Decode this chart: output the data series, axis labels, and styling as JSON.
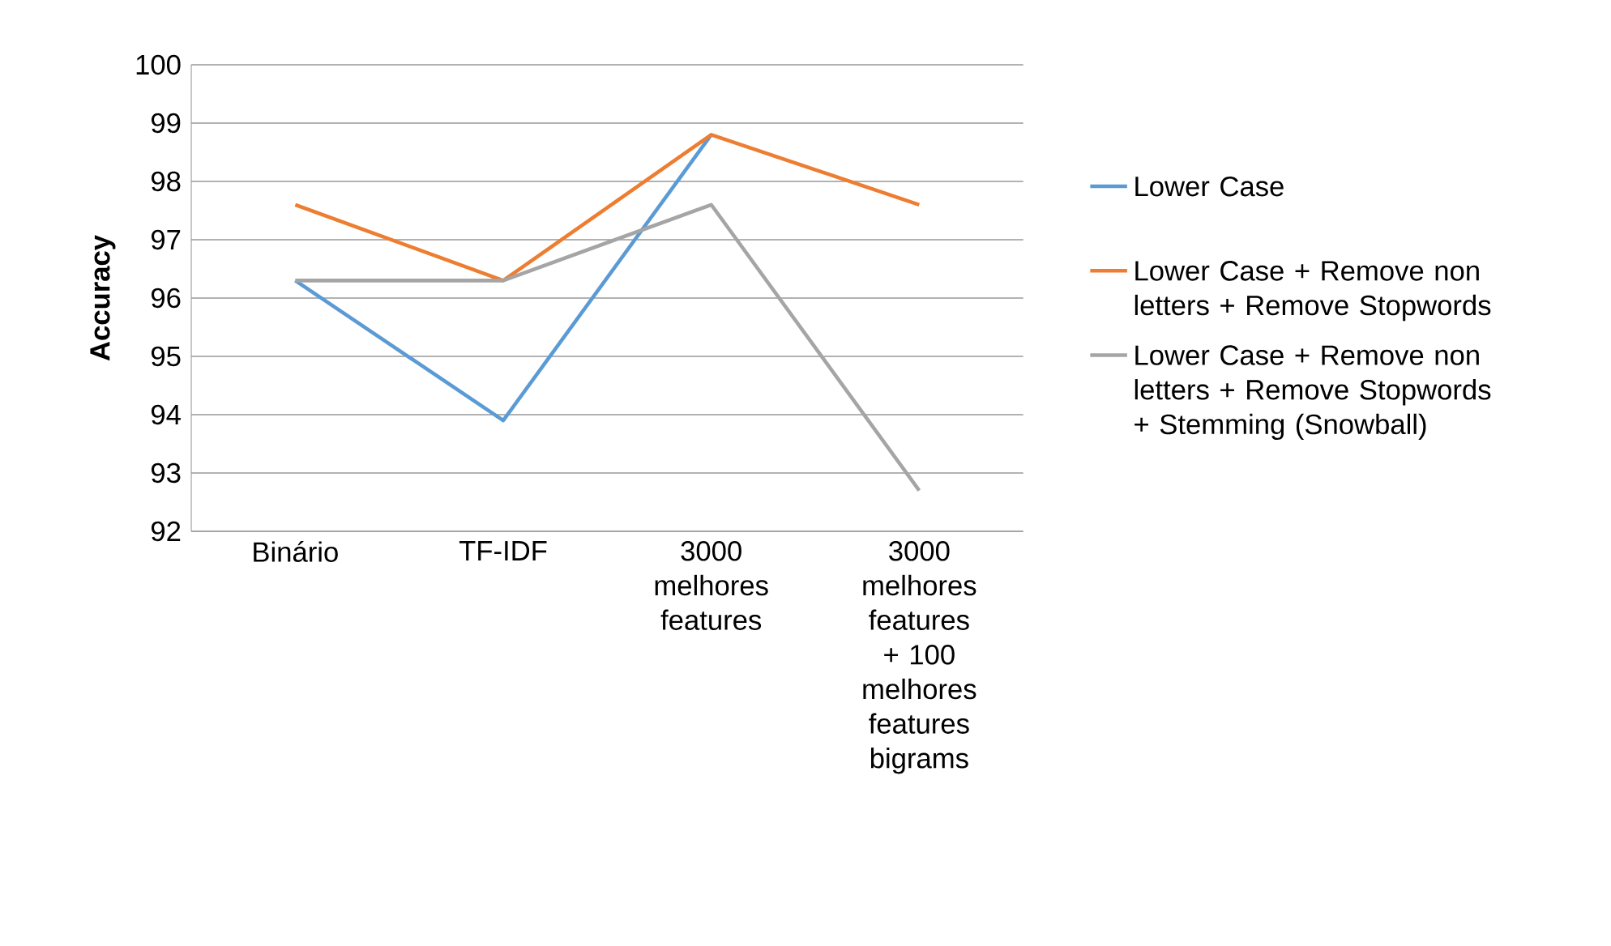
{
  "chart_data": {
    "type": "line",
    "ylabel": "Accuracy",
    "categories": [
      "Binário",
      "TF-IDF",
      "3000 melhores features",
      "3000 melhores features + 100 melhores features bigrams"
    ],
    "series": [
      {
        "name": "Lower Case",
        "color": "#5b9bd5",
        "values": [
          96.3,
          93.9,
          98.8,
          null
        ]
      },
      {
        "name": "Lower Case + Remove non letters + Remove Stopwords",
        "color": "#ed7d31",
        "values": [
          97.6,
          96.3,
          98.8,
          97.6
        ]
      },
      {
        "name": "Lower Case + Remove non letters + Remove Stopwords + Stemming (Snowball)",
        "color": "#a5a5a5",
        "values": [
          96.3,
          96.3,
          97.6,
          92.7
        ]
      }
    ],
    "ylim": [
      92,
      100
    ],
    "yticks": [
      92,
      93,
      94,
      95,
      96,
      97,
      98,
      99,
      100
    ],
    "grid": "y",
    "legend": "right"
  }
}
